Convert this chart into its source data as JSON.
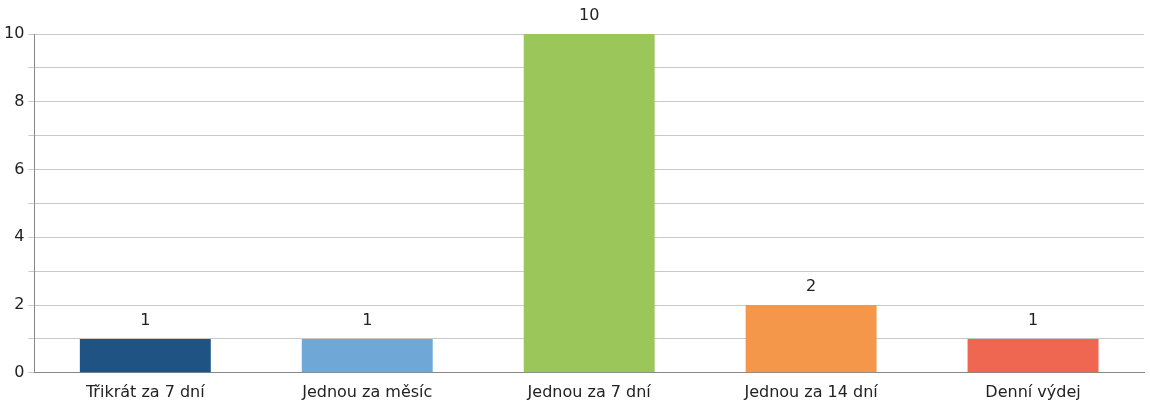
{
  "chart_data": {
    "type": "bar",
    "categories": [
      "Třikrát za 7 dní",
      "Jednou za měsíc",
      "Jednou za 7 dní",
      "Jednou za 14 dní",
      "Denní výdej"
    ],
    "values": [
      1,
      1,
      10,
      2,
      1
    ],
    "colors": [
      "#1f5383",
      "#6fa7d7",
      "#9bc65a",
      "#f4974a",
      "#ef6651"
    ],
    "ylim": [
      0,
      10
    ],
    "yticks": [
      0,
      {
        "value": 1,
        "label": null
      },
      2,
      {
        "value": 3,
        "label": null
      },
      4,
      {
        "value": 5,
        "label": null
      },
      6,
      {
        "value": 7,
        "label": null
      },
      8,
      {
        "value": 9,
        "label": null
      },
      10
    ],
    "grid": "y",
    "legend": false,
    "data_labels": true
  }
}
